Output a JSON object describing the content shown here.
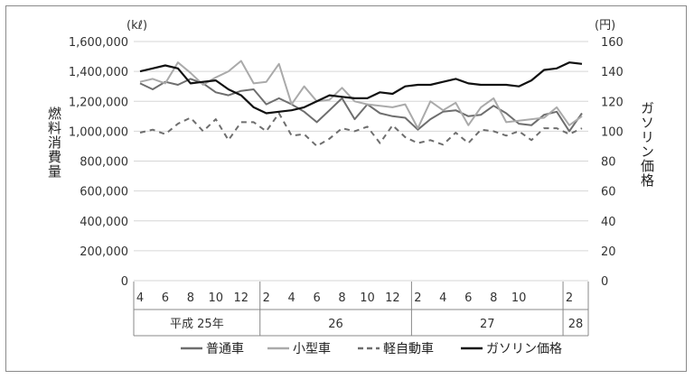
{
  "chart_data": {
    "type": "line",
    "left_unit": "(kℓ)",
    "right_unit": "(円)",
    "ylabel_left": "燃料消費量",
    "ylabel_right": "ガソリン価格",
    "left_ticks": [
      "0",
      "200,000",
      "400,000",
      "600,000",
      "800,000",
      "1,000,000",
      "1,200,000",
      "1,400,000",
      "1,600,000"
    ],
    "right_ticks": [
      "0",
      "20",
      "40",
      "60",
      "80",
      "100",
      "120",
      "140",
      "160"
    ],
    "ylim_left": [
      0,
      1600000
    ],
    "ylim_right": [
      0,
      160
    ],
    "x_month_labels": [
      "4",
      "6",
      "8",
      "10",
      "12",
      "2",
      "4",
      "6",
      "8",
      "10",
      "12",
      "2",
      "4",
      "6",
      "8",
      "10",
      "2"
    ],
    "x_month_indices": [
      0,
      2,
      4,
      6,
      8,
      10,
      12,
      14,
      16,
      18,
      20,
      22,
      24,
      26,
      28,
      30,
      34
    ],
    "year_groups": [
      {
        "label": "平成 25年",
        "start": 0,
        "end": 9
      },
      {
        "label": "26",
        "start": 10,
        "end": 21
      },
      {
        "label": "27",
        "start": 22,
        "end": 33
      },
      {
        "label": "28",
        "start": 34,
        "end": 35
      }
    ],
    "grid": true,
    "legend_position": "bottom",
    "series": [
      {
        "name": "普通車",
        "axis": "left",
        "color": "#6e6e6e",
        "style": "solid",
        "values": [
          1320000,
          1280000,
          1330000,
          1310000,
          1350000,
          1320000,
          1260000,
          1240000,
          1270000,
          1280000,
          1180000,
          1220000,
          1180000,
          1130000,
          1060000,
          1140000,
          1220000,
          1080000,
          1180000,
          1120000,
          1100000,
          1090000,
          1010000,
          1080000,
          1130000,
          1140000,
          1100000,
          1110000,
          1170000,
          1120000,
          1050000,
          1040000,
          1110000,
          1130000,
          1000000,
          1120000
        ]
      },
      {
        "name": "小型車",
        "axis": "left",
        "color": "#aaaaaa",
        "style": "solid",
        "values": [
          1330000,
          1350000,
          1320000,
          1460000,
          1390000,
          1310000,
          1360000,
          1400000,
          1470000,
          1320000,
          1330000,
          1450000,
          1180000,
          1300000,
          1200000,
          1210000,
          1290000,
          1200000,
          1180000,
          1170000,
          1160000,
          1180000,
          1020000,
          1200000,
          1140000,
          1190000,
          1040000,
          1160000,
          1220000,
          1060000,
          1070000,
          1080000,
          1090000,
          1160000,
          1040000,
          1100000
        ]
      },
      {
        "name": "軽自動車",
        "axis": "left",
        "color": "#6e6e6e",
        "style": "dashed",
        "values": [
          990000,
          1010000,
          980000,
          1050000,
          1090000,
          1000000,
          1080000,
          940000,
          1060000,
          1060000,
          1000000,
          1120000,
          970000,
          980000,
          900000,
          950000,
          1020000,
          1000000,
          1030000,
          920000,
          1040000,
          960000,
          920000,
          940000,
          910000,
          990000,
          920000,
          1010000,
          1000000,
          970000,
          1000000,
          940000,
          1020000,
          1020000,
          980000,
          1020000
        ]
      },
      {
        "name": "ガソリン価格",
        "axis": "right",
        "color": "#111111",
        "style": "solid",
        "values": [
          140,
          142,
          144,
          142,
          132,
          133,
          134,
          128,
          124,
          116,
          112,
          113,
          114,
          116,
          120,
          124,
          123,
          122,
          122,
          126,
          125,
          130,
          131,
          131,
          133,
          135,
          132,
          131,
          131,
          131,
          130,
          134,
          141,
          142,
          146,
          145
        ]
      }
    ]
  }
}
